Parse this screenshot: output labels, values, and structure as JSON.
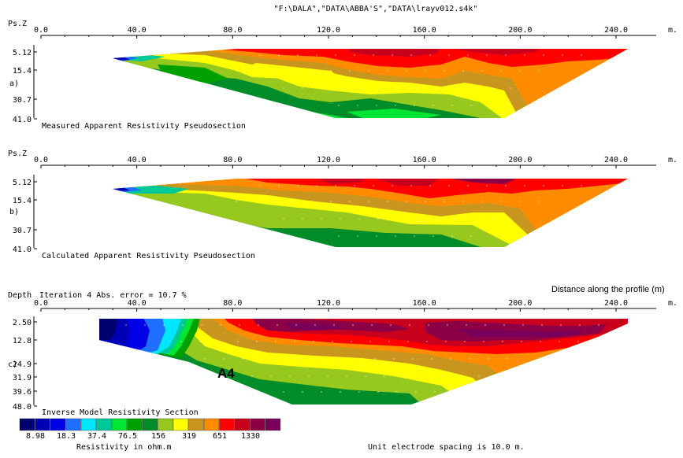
{
  "file_header": "\"F:\\DALA\",\"DATA\\ABBA'S\",\"DATA\\lrayv012.s4k\"",
  "distance_label": "Distance along the profile (m)",
  "unit_label": "m.",
  "x_ticks": [
    "0.0",
    "40.0",
    "80.0",
    "120.0",
    "160.0",
    "200.0",
    "240.0"
  ],
  "x_tick_values": [
    0,
    40,
    80,
    120,
    160,
    200,
    240
  ],
  "panels": [
    {
      "id": "a",
      "panel_letter": "a)",
      "axis_title": "Ps.Z",
      "caption": "Measured Apparent Resistivity Pseudosection",
      "depth_ticks": [
        "5.12",
        "15.4",
        "30.7",
        "41.0"
      ],
      "depth_tick_values": [
        5.12,
        15.4,
        30.7,
        41.0
      ]
    },
    {
      "id": "b",
      "panel_letter": "b)",
      "axis_title": "Ps.Z",
      "caption": "Calculated Apparent Resistivity Pseudosection",
      "depth_ticks": [
        "5.12",
        "15.4",
        "30.7",
        "41.0"
      ],
      "depth_tick_values": [
        5.12,
        15.4,
        30.7,
        41.0
      ]
    },
    {
      "id": "c",
      "panel_letter": "c)",
      "axis_title": "Depth",
      "iteration_text": "Iteration 4 Abs. error = 10.7 %",
      "caption": "Inverse Model Resistivity Section",
      "annotation": "A4",
      "depth_ticks": [
        "2.50",
        "12.8",
        "24.9",
        "31.9",
        "39.6",
        "48.0"
      ],
      "depth_tick_values": [
        2.5,
        12.8,
        24.9,
        31.9,
        39.6,
        48.0
      ]
    }
  ],
  "legend": {
    "colors": [
      "#00006e",
      "#0000b4",
      "#0000e6",
      "#1e6eff",
      "#00e6ff",
      "#00c896",
      "#00e632",
      "#00a000",
      "#008c28",
      "#96c81e",
      "#ffff00",
      "#c8961e",
      "#ff8c00",
      "#ff0000",
      "#c8001e",
      "#8c0046",
      "#78005a"
    ],
    "labels": [
      "8.98",
      "18.3",
      "37.4",
      "76.5",
      "156",
      "319",
      "651",
      "1330"
    ],
    "title": "Resistivity in ohm.m",
    "spacing_note": "Unit electrode spacing is 10.0 m."
  }
}
